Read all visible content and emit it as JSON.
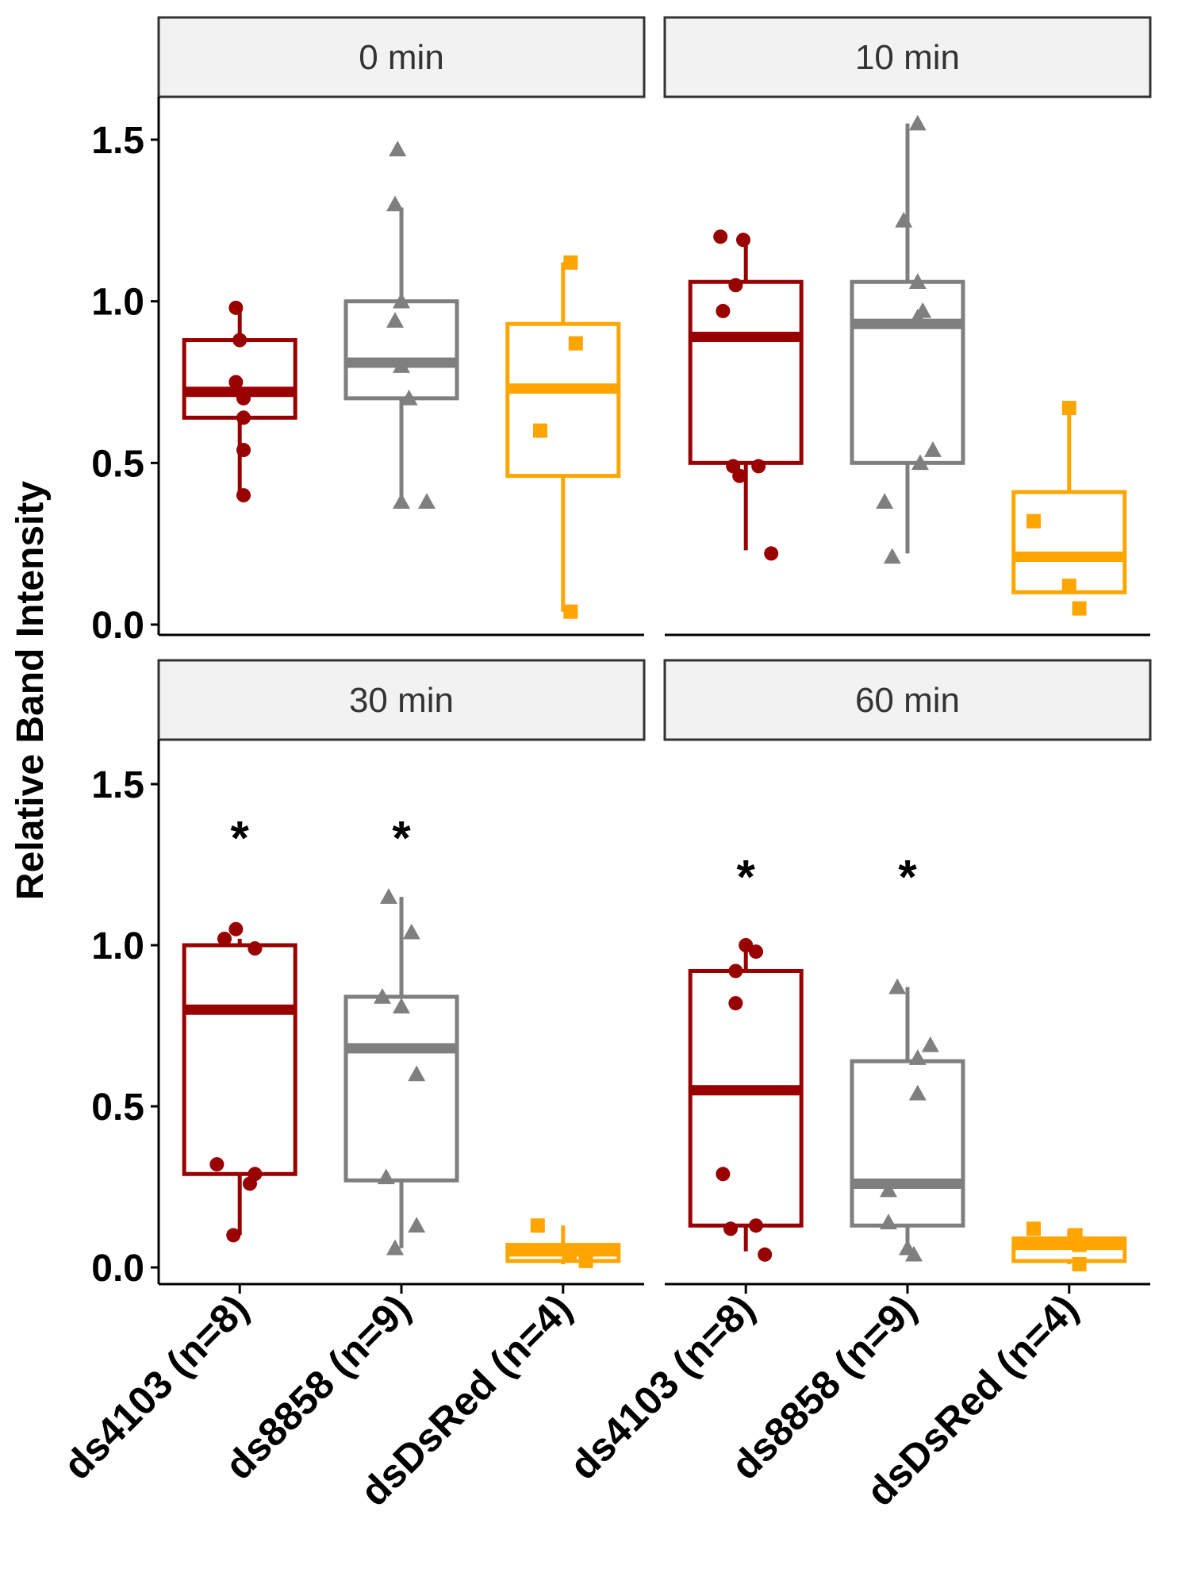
{
  "chart_data": {
    "type": "boxplot",
    "ylabel": "Relative Band Intensity",
    "xlabel": "",
    "ylim": [
      0,
      1.6
    ],
    "y_ticks": [
      0.0,
      0.5,
      1.0,
      1.5
    ],
    "y_tick_labels": [
      "0.0",
      "0.5",
      "1.0",
      "1.5"
    ],
    "categories": [
      "ds4103 (n=8)",
      "ds8858 (n=9)",
      "dsDsRed (n=4)"
    ],
    "series_colors": {
      "ds4103 (n=8)": "#990000",
      "ds8858 (n=9)": "#7f7f7f",
      "dsDsRed (n=4)": "#ffa500"
    },
    "marker_shapes": {
      "ds4103 (n=8)": "circle",
      "ds8858 (n=9)": "triangle",
      "dsDsRed (n=4)": "square"
    },
    "panels": [
      {
        "title": "0 min",
        "groups": [
          {
            "category": "ds4103 (n=8)",
            "q1": 0.64,
            "median": 0.72,
            "q3": 0.88,
            "whisker_low": 0.41,
            "whisker_high": 0.98,
            "points": [
              [
                -0.03,
                0.98
              ],
              [
                0.0,
                0.88
              ],
              [
                -0.03,
                0.75
              ],
              [
                0.03,
                0.7
              ],
              [
                0.03,
                0.64
              ],
              [
                0.03,
                0.54
              ],
              [
                0.03,
                0.4
              ]
            ]
          },
          {
            "category": "ds8858 (n=9)",
            "q1": 0.7,
            "median": 0.81,
            "q3": 1.0,
            "whisker_low": 0.37,
            "whisker_high": 1.29,
            "points": [
              [
                -0.03,
                1.47
              ],
              [
                -0.05,
                1.3
              ],
              [
                0.0,
                1.0
              ],
              [
                -0.05,
                0.94
              ],
              [
                0.0,
                0.8
              ],
              [
                0.06,
                0.7
              ],
              [
                0.0,
                0.38
              ],
              [
                0.2,
                0.38
              ]
            ]
          },
          {
            "category": "dsDsRed (n=4)",
            "q1": 0.46,
            "median": 0.73,
            "q3": 0.93,
            "whisker_low": 0.04,
            "whisker_high": 1.12,
            "points": [
              [
                0.06,
                1.12
              ],
              [
                0.1,
                0.87
              ],
              [
                -0.18,
                0.6
              ],
              [
                0.06,
                0.04
              ]
            ]
          }
        ],
        "annotations": []
      },
      {
        "title": "10 min",
        "groups": [
          {
            "category": "ds4103 (n=8)",
            "q1": 0.5,
            "median": 0.89,
            "q3": 1.06,
            "whisker_low": 0.23,
            "whisker_high": 1.19,
            "points": [
              [
                -0.2,
                1.2
              ],
              [
                -0.02,
                1.19
              ],
              [
                -0.08,
                1.05
              ],
              [
                -0.18,
                0.97
              ],
              [
                -0.1,
                0.49
              ],
              [
                0.1,
                0.49
              ],
              [
                -0.05,
                0.46
              ],
              [
                0.2,
                0.22
              ]
            ]
          },
          {
            "category": "ds8858 (n=9)",
            "q1": 0.5,
            "median": 0.93,
            "q3": 1.06,
            "whisker_low": 0.22,
            "whisker_high": 1.55,
            "points": [
              [
                0.08,
                1.55
              ],
              [
                -0.03,
                1.25
              ],
              [
                0.08,
                1.06
              ],
              [
                0.12,
                0.97
              ],
              [
                0.08,
                0.95
              ],
              [
                0.2,
                0.54
              ],
              [
                0.1,
                0.5
              ],
              [
                -0.18,
                0.38
              ],
              [
                -0.12,
                0.21
              ]
            ]
          },
          {
            "category": "dsDsRed (n=4)",
            "q1": 0.1,
            "median": 0.21,
            "q3": 0.41,
            "whisker_low": 0.1,
            "whisker_high": 0.67,
            "points": [
              [
                0.0,
                0.67
              ],
              [
                -0.28,
                0.32
              ],
              [
                0.0,
                0.12
              ],
              [
                0.08,
                0.05
              ]
            ]
          }
        ],
        "annotations": []
      },
      {
        "title": "30 min",
        "groups": [
          {
            "category": "ds4103 (n=8)",
            "q1": 0.29,
            "median": 0.8,
            "q3": 1.0,
            "whisker_low": 0.1,
            "whisker_high": 1.02,
            "points": [
              [
                -0.03,
                1.05
              ],
              [
                -0.12,
                1.02
              ],
              [
                0.12,
                0.99
              ],
              [
                -0.18,
                0.32
              ],
              [
                0.12,
                0.29
              ],
              [
                0.08,
                0.26
              ],
              [
                -0.05,
                0.1
              ]
            ]
          },
          {
            "category": "ds8858 (n=9)",
            "q1": 0.27,
            "median": 0.68,
            "q3": 0.84,
            "whisker_low": 0.06,
            "whisker_high": 1.15,
            "points": [
              [
                -0.1,
                1.15
              ],
              [
                0.08,
                1.04
              ],
              [
                -0.15,
                0.84
              ],
              [
                0.0,
                0.81
              ],
              [
                0.12,
                0.6
              ],
              [
                -0.12,
                0.28
              ],
              [
                0.12,
                0.13
              ],
              [
                -0.05,
                0.06
              ]
            ]
          },
          {
            "category": "dsDsRed (n=4)",
            "q1": 0.02,
            "median": 0.05,
            "q3": 0.07,
            "whisker_low": 0.01,
            "whisker_high": 0.13,
            "points": [
              [
                -0.2,
                0.13
              ],
              [
                0.05,
                0.04
              ],
              [
                0.18,
                0.02
              ],
              [
                0.05,
                0.04
              ]
            ]
          }
        ],
        "annotations": [
          {
            "category": "ds4103 (n=8)",
            "text": "*",
            "y": 1.38
          },
          {
            "category": "ds8858 (n=9)",
            "text": "*",
            "y": 1.38
          }
        ]
      },
      {
        "title": "60 min",
        "groups": [
          {
            "category": "ds4103 (n=8)",
            "q1": 0.13,
            "median": 0.55,
            "q3": 0.92,
            "whisker_low": 0.05,
            "whisker_high": 1.0,
            "points": [
              [
                0.0,
                1.0
              ],
              [
                0.08,
                0.98
              ],
              [
                -0.08,
                0.92
              ],
              [
                -0.08,
                0.82
              ],
              [
                -0.18,
                0.29
              ],
              [
                0.08,
                0.13
              ],
              [
                -0.12,
                0.12
              ],
              [
                0.15,
                0.04
              ]
            ]
          },
          {
            "category": "ds8858 (n=9)",
            "q1": 0.13,
            "median": 0.26,
            "q3": 0.64,
            "whisker_low": 0.04,
            "whisker_high": 0.87,
            "points": [
              [
                -0.08,
                0.87
              ],
              [
                0.18,
                0.69
              ],
              [
                0.08,
                0.65
              ],
              [
                0.08,
                0.54
              ],
              [
                -0.15,
                0.24
              ],
              [
                -0.15,
                0.14
              ],
              [
                0.0,
                0.06
              ],
              [
                0.05,
                0.04
              ]
            ]
          },
          {
            "category": "dsDsRed (n=4)",
            "q1": 0.02,
            "median": 0.07,
            "q3": 0.09,
            "whisker_low": 0.01,
            "whisker_high": 0.12,
            "points": [
              [
                -0.28,
                0.12
              ],
              [
                0.05,
                0.1
              ],
              [
                0.08,
                0.07
              ],
              [
                0.08,
                0.01
              ]
            ]
          }
        ],
        "annotations": [
          {
            "category": "ds4103 (n=8)",
            "text": "*",
            "y": 1.26
          },
          {
            "category": "ds8858 (n=9)",
            "text": "*",
            "y": 1.26
          }
        ]
      }
    ]
  }
}
